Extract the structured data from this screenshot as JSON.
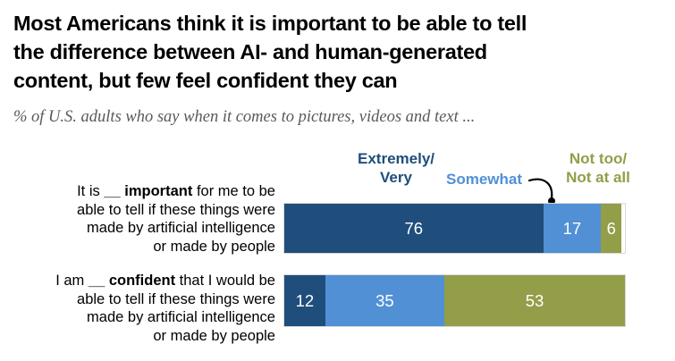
{
  "title": {
    "lines": [
      "Most Americans think it is important to be able to tell",
      "the difference between AI- and human-generated",
      "content, but few feel confident they can"
    ]
  },
  "subtitle": "% of U.S. adults who say when it comes to pictures, videos and text ...",
  "legend": {
    "extremely_very": {
      "line1": "Extremely/",
      "line2": "Very"
    },
    "somewhat": "Somewhat",
    "not_too": {
      "line1": "Not too/",
      "line2": "Not at all"
    }
  },
  "colors": {
    "navy": "#1f4e7c",
    "blue": "#5190d5",
    "olive": "#949d48",
    "title_black": "#000000",
    "subtitle_gray": "#595959",
    "callout_black": "#000000",
    "bar_value_white": "#ffffff"
  },
  "rows": [
    {
      "label": {
        "pre": "It is ",
        "bold": "__ important",
        "post": " for me to be",
        "line2": "able to tell if these things were",
        "line3": "made by artificial intelligence",
        "line4": "or made by people"
      }
    },
    {
      "label": {
        "pre": "I am ",
        "bold": "__ confident",
        "post": " that I would be",
        "line2": "able to tell if these things were",
        "line3": "made by artificial intelligence",
        "line4": "or made by people"
      }
    }
  ],
  "chart_data": {
    "type": "bar",
    "orientation": "horizontal",
    "stacked": true,
    "title": "Most Americans think it is important to be able to tell the difference between AI- and human-generated content, but few feel confident they can",
    "subtitle": "% of U.S. adults who say when it comes to pictures, videos and text ...",
    "categories": [
      "It is __ important for me to be able to tell if these things were made by artificial intelligence or made by people",
      "I am __ confident that I would be able to tell if these things were made by artificial intelligence or made by people"
    ],
    "series": [
      {
        "name": "Extremely/Very",
        "color": "#1f4e7c",
        "values": [
          76,
          12
        ]
      },
      {
        "name": "Somewhat",
        "color": "#5190d5",
        "values": [
          17,
          35
        ]
      },
      {
        "name": "Not too/Not at all",
        "color": "#949d48",
        "values": [
          6,
          53
        ]
      }
    ],
    "xlim": [
      0,
      100
    ],
    "value_labels": true,
    "legend_position": "top",
    "grid": false
  }
}
